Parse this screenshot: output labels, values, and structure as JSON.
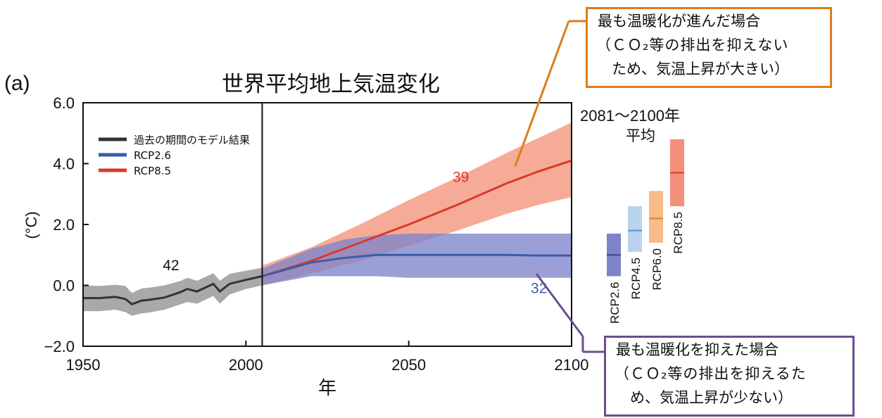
{
  "chart_data": {
    "type": "line",
    "panel_label": "(a)",
    "title": "世界平均地上気温変化",
    "xlabel": "年",
    "ylabel": "(°C)",
    "xlim": [
      1950,
      2100
    ],
    "ylim": [
      -2.0,
      6.0
    ],
    "x_ticks": [
      "1950",
      "2000",
      "2050",
      "2100"
    ],
    "y_ticks": [
      "6.0",
      "4.0",
      "2.0",
      "0.0",
      "−2.0"
    ],
    "divider_year": 2005,
    "grid": false,
    "legend_position": "top-left",
    "legend": [
      {
        "label": "過去の期間のモデル結果",
        "color": "#333333"
      },
      {
        "label": "RCP2.6",
        "color": "#3a5da8"
      },
      {
        "label": "RCP8.5",
        "color": "#d93a2b"
      }
    ],
    "series": [
      {
        "name": "過去の期間のモデル結果",
        "color": "#333333",
        "band_color": "#a9a9a9",
        "x": [
          1950,
          1955,
          1960,
          1963,
          1965,
          1968,
          1970,
          1975,
          1980,
          1982,
          1985,
          1990,
          1992,
          1995,
          2000,
          2005
        ],
        "y": [
          -0.42,
          -0.42,
          -0.38,
          -0.45,
          -0.62,
          -0.5,
          -0.48,
          -0.4,
          -0.22,
          -0.12,
          -0.2,
          0.05,
          -0.2,
          0.05,
          0.18,
          0.3
        ],
        "lower": [
          -0.85,
          -0.85,
          -0.8,
          -0.88,
          -1.0,
          -0.92,
          -0.9,
          -0.8,
          -0.62,
          -0.55,
          -0.6,
          -0.35,
          -0.6,
          -0.3,
          -0.12,
          0.0
        ],
        "upper": [
          0.0,
          -0.02,
          0.02,
          -0.02,
          -0.25,
          -0.1,
          -0.08,
          0.0,
          0.15,
          0.25,
          0.15,
          0.4,
          0.15,
          0.38,
          0.48,
          0.58
        ]
      },
      {
        "name": "RCP8.5",
        "color": "#d93a2b",
        "band_color": "#f2937a",
        "x": [
          2005,
          2020,
          2035,
          2050,
          2065,
          2080,
          2090,
          2100
        ],
        "y": [
          0.3,
          0.8,
          1.4,
          2.0,
          2.65,
          3.35,
          3.75,
          4.1
        ],
        "lower": [
          0.0,
          0.4,
          0.8,
          1.3,
          1.8,
          2.35,
          2.65,
          2.9
        ],
        "upper": [
          0.65,
          1.25,
          2.0,
          2.8,
          3.55,
          4.35,
          4.85,
          5.35
        ]
      },
      {
        "name": "RCP2.6",
        "color": "#3a5da8",
        "band_color": "#7d84c9",
        "x": [
          2005,
          2020,
          2030,
          2040,
          2050,
          2060,
          2070,
          2080,
          2090,
          2100
        ],
        "y": [
          0.3,
          0.75,
          0.9,
          1.0,
          1.0,
          1.0,
          1.0,
          1.0,
          0.98,
          0.98
        ],
        "lower": [
          0.0,
          0.3,
          0.3,
          0.3,
          0.25,
          0.25,
          0.25,
          0.25,
          0.25,
          0.25
        ],
        "upper": [
          0.55,
          1.2,
          1.5,
          1.65,
          1.7,
          1.7,
          1.7,
          1.7,
          1.7,
          1.7
        ]
      }
    ],
    "model_counts": [
      {
        "text": "42",
        "x": 1977,
        "y": 0.5,
        "color": "#111111"
      },
      {
        "text": "39",
        "x": 2066,
        "y": 3.4,
        "color": "#d93a2b"
      },
      {
        "text": "32",
        "x": 2090,
        "y": -0.25,
        "color": "#3a5da8"
      }
    ],
    "side_panel": {
      "title_line1": "2081～2100年",
      "title_line2": "平均",
      "bars": [
        {
          "label": "RCP2.6",
          "low": 0.3,
          "high": 1.7,
          "mean": 1.0,
          "fill": "#7e84c8",
          "line": "#3a4590"
        },
        {
          "label": "RCP4.5",
          "low": 1.1,
          "high": 2.6,
          "mean": 1.8,
          "fill": "#b9d3ee",
          "line": "#5a90d0"
        },
        {
          "label": "RCP6.0",
          "low": 1.4,
          "high": 3.1,
          "mean": 2.2,
          "fill": "#f7bb88",
          "line": "#e07f2a"
        },
        {
          "label": "RCP8.5",
          "low": 2.6,
          "high": 4.8,
          "mean": 3.7,
          "fill": "#f3907b",
          "line": "#d93a2b"
        }
      ]
    }
  },
  "callouts": {
    "high": {
      "line1": "最も温暖化が進んだ場合",
      "line2": "（ＣＯ₂等の排出を抑えない",
      "line3": "ため、気温上昇が大きい）",
      "border_color": "#e07b1a"
    },
    "low": {
      "line1": "最も温暖化を抑えた場合",
      "line2": "（ＣＯ₂等の排出を抑えるた",
      "line3": "め、気温上昇が少ない）",
      "border_color": "#6a4f8d"
    }
  }
}
